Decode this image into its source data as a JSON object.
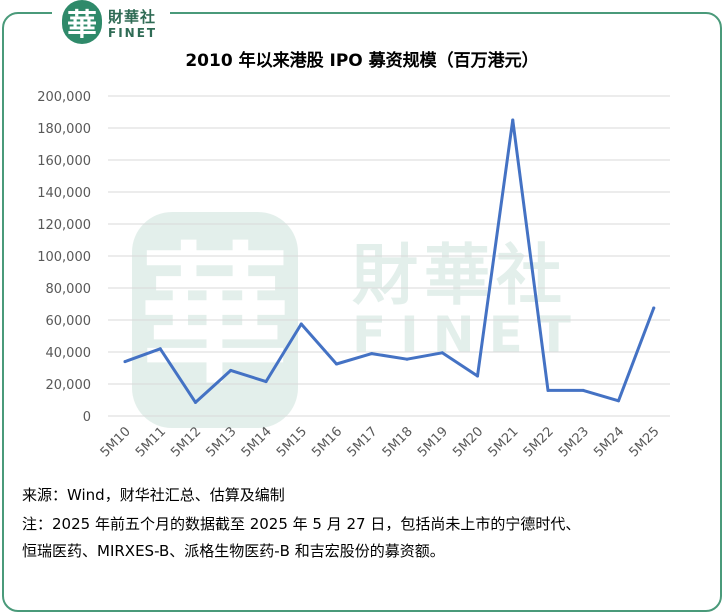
{
  "brand": {
    "logo_glyph": "華",
    "name_cn": "財華社",
    "name_en": "FINET",
    "color": "#2f8a6a"
  },
  "watermark": {
    "glyph": "華",
    "name_cn": "財華社",
    "name_en": "FINET"
  },
  "chart_data": {
    "type": "line",
    "title": "2010 年以来港股 IPO 募资规模（百万港元）",
    "xlabel": "",
    "ylabel": "",
    "categories": [
      "5M10",
      "5M11",
      "5M12",
      "5M13",
      "5M14",
      "5M15",
      "5M16",
      "5M17",
      "5M18",
      "5M19",
      "5M20",
      "5M21",
      "5M22",
      "5M23",
      "5M24",
      "5M25"
    ],
    "series": [
      {
        "values": [
          34000,
          42000,
          8500,
          28500,
          21500,
          57500,
          32500,
          39000,
          35500,
          39500,
          25000,
          185000,
          16000,
          16000,
          9500,
          67500
        ],
        "color": "#4472c4"
      }
    ],
    "yticks": [
      "0",
      "20,000",
      "40,000",
      "60,000",
      "80,000",
      "100,000",
      "120,000",
      "140,000",
      "160,000",
      "180,000",
      "200,000"
    ],
    "ylim": [
      0,
      200000
    ],
    "grid": true,
    "legend": "none"
  },
  "notes": {
    "source": "来源：Wind，财华社汇总、估算及编制",
    "note_line1": "注：2025 年前五个月的数据截至 2025 年 5 月 27 日，包括尚未上市的宁德时代、",
    "note_line2": "恒瑞医药、MIRXES-B、派格生物医药-B 和吉宏股份的募资额。"
  }
}
